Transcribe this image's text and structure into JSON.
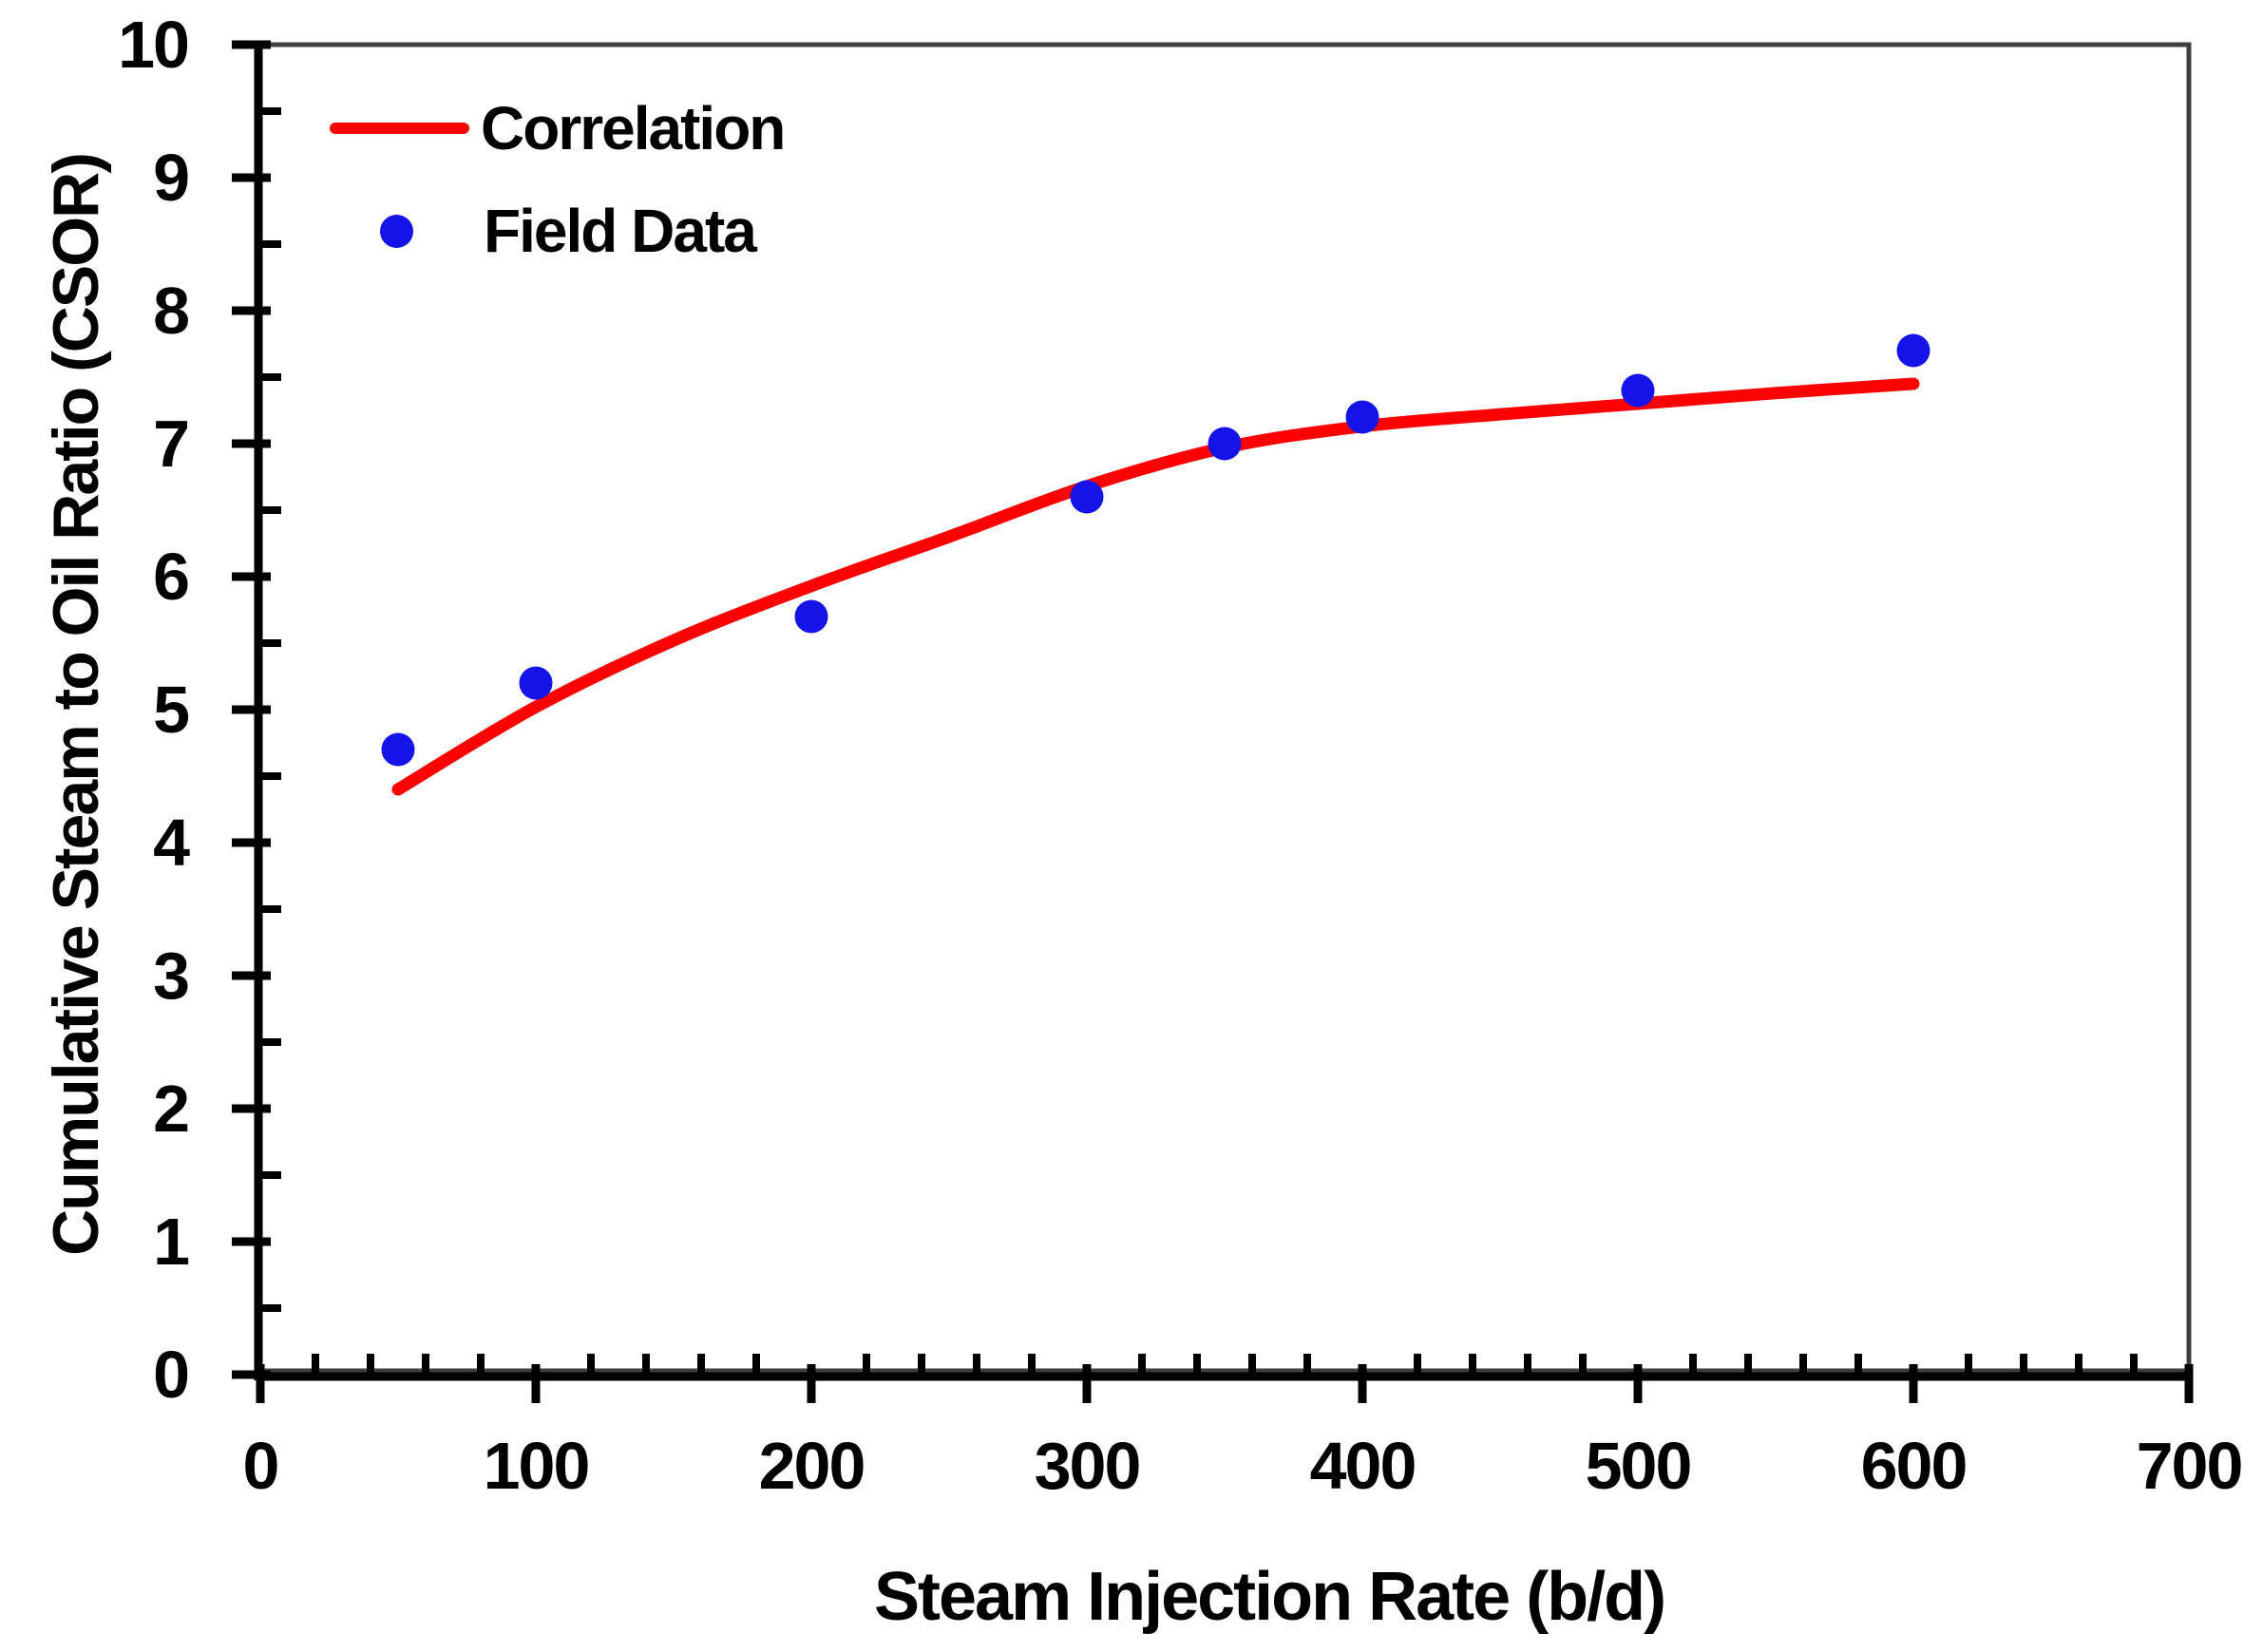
{
  "chart_data": {
    "type": "line+scatter",
    "title": "",
    "xlabel": "Steam Injection Rate (b/d)",
    "ylabel": "Cumulative Steam to Oil Ratio (CSOR)",
    "xlim": [
      0,
      700
    ],
    "ylim": [
      0,
      10
    ],
    "x_major_ticks": [
      0,
      100,
      200,
      300,
      400,
      500,
      600,
      700
    ],
    "y_major_ticks": [
      0,
      1,
      2,
      3,
      4,
      5,
      6,
      7,
      8,
      9,
      10
    ],
    "x_minor_step": 20,
    "y_minor_step": 0.5,
    "grid": "off",
    "legend_position": "top-left-inside",
    "series": [
      {
        "name": "Correlation",
        "kind": "line",
        "color": "#ff0000",
        "points": [
          [
            50,
            4.4
          ],
          [
            100,
            5.02
          ],
          [
            150,
            5.52
          ],
          [
            200,
            5.93
          ],
          [
            250,
            6.3
          ],
          [
            300,
            6.68
          ],
          [
            350,
            6.97
          ],
          [
            400,
            7.13
          ],
          [
            450,
            7.22
          ],
          [
            500,
            7.3
          ],
          [
            550,
            7.38
          ],
          [
            600,
            7.45
          ]
        ]
      },
      {
        "name": "Field Data",
        "kind": "scatter",
        "color": "#1414e8",
        "points": [
          [
            50,
            4.7
          ],
          [
            100,
            5.2
          ],
          [
            200,
            5.7
          ],
          [
            300,
            6.6
          ],
          [
            350,
            7.0
          ],
          [
            400,
            7.2
          ],
          [
            500,
            7.4
          ],
          [
            600,
            7.7
          ]
        ]
      }
    ]
  },
  "colors": {
    "background": "#ffffff",
    "axis": "#000000",
    "plot_border": "#3f3f3f",
    "text": "#000000",
    "correlation_red": "#ff0000",
    "field_data_blue": "#1414e8"
  }
}
